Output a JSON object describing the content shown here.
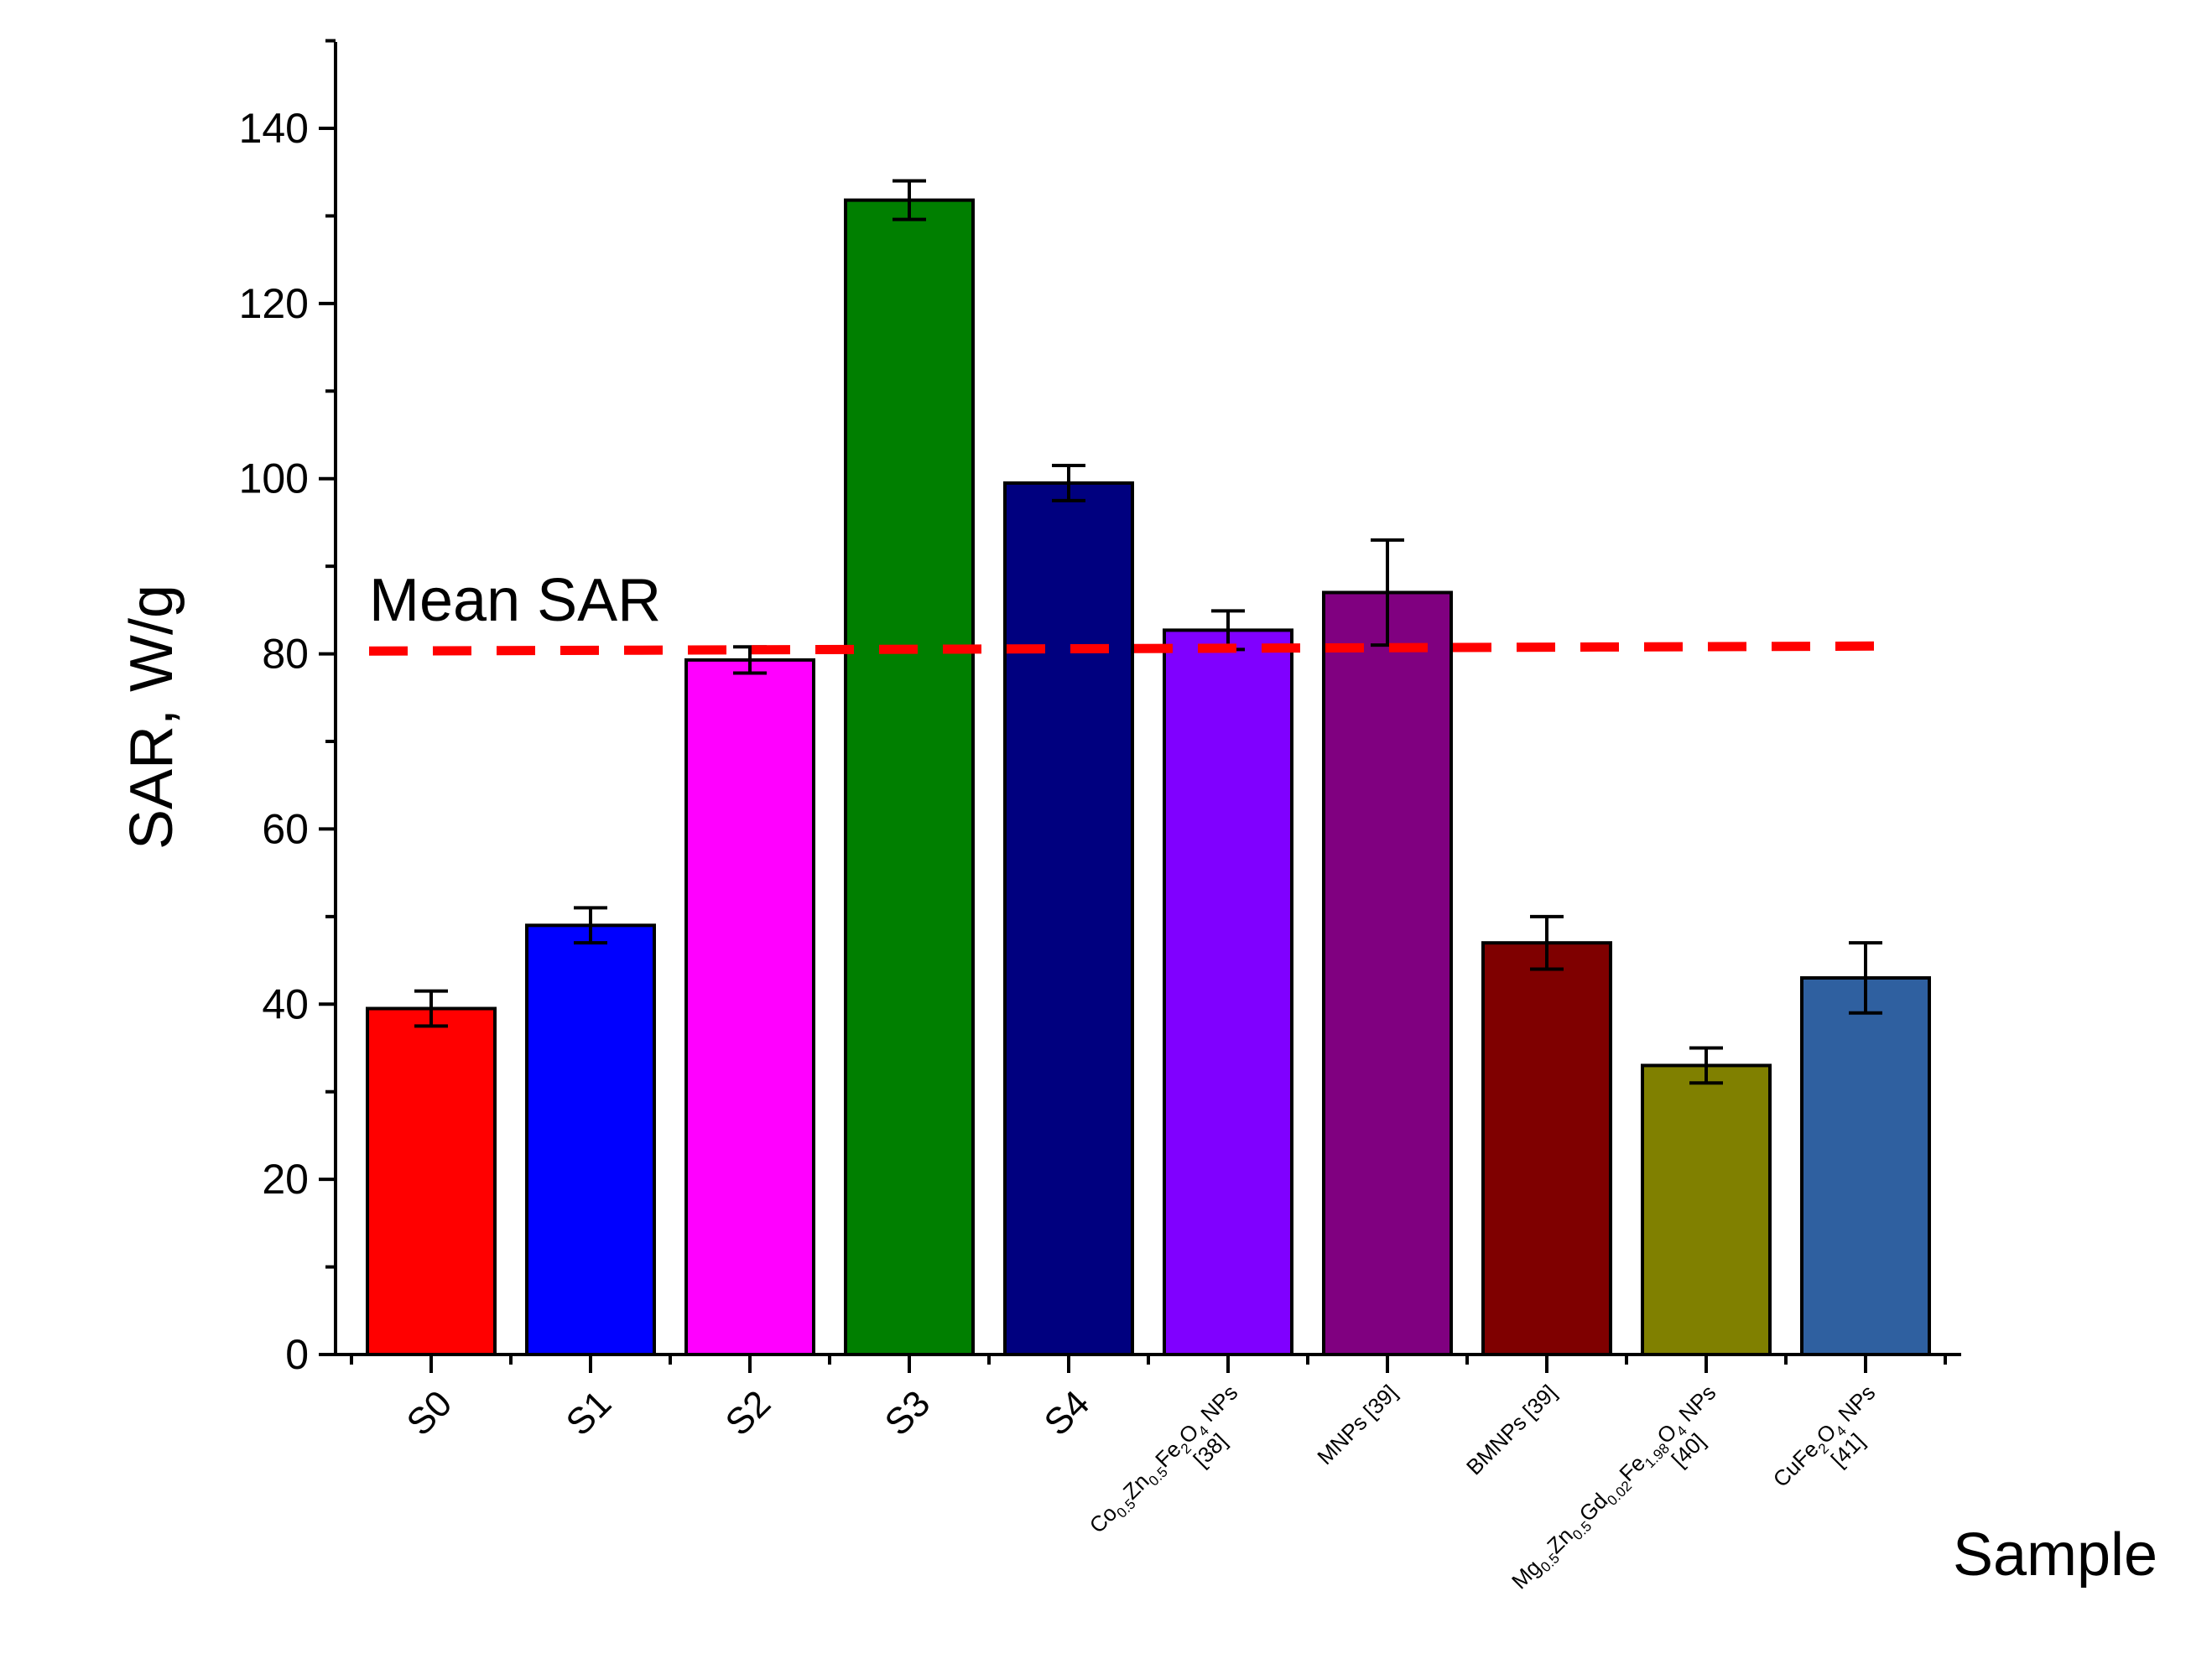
{
  "chart_data": {
    "type": "bar",
    "title": "",
    "xlabel": "Sample",
    "ylabel": "SAR, W/g",
    "ylim": [
      0,
      150
    ],
    "yticks": [
      "0",
      "20",
      "40",
      "60",
      "80",
      "100",
      "120",
      "140"
    ],
    "grid": false,
    "categories": [
      {
        "parts": [
          [
            "S0",
            ""
          ]
        ]
      },
      {
        "parts": [
          [
            "S1",
            ""
          ]
        ]
      },
      {
        "parts": [
          [
            "S2",
            ""
          ]
        ]
      },
      {
        "parts": [
          [
            "S3",
            ""
          ]
        ]
      },
      {
        "parts": [
          [
            "S4",
            ""
          ]
        ]
      },
      {
        "parts": [
          [
            "Co",
            "0.5"
          ],
          [
            "Zn",
            "0.5"
          ],
          [
            "Fe",
            "2"
          ],
          [
            "O",
            "4"
          ],
          [
            " NPs",
            ""
          ]
        ],
        "line2": "[38]"
      },
      {
        "parts": [
          [
            "MNPs [39]",
            ""
          ]
        ]
      },
      {
        "parts": [
          [
            "BMNPs [39]",
            ""
          ]
        ]
      },
      {
        "parts": [
          [
            "Mg",
            "0.5"
          ],
          [
            "Zn",
            "0.5"
          ],
          [
            "Gd",
            "0.02"
          ],
          [
            "Fe",
            "1.98"
          ],
          [
            "O",
            "4"
          ],
          [
            " NPs",
            ""
          ]
        ],
        "line2": "[40]"
      },
      {
        "parts": [
          [
            "CuFe",
            "2"
          ],
          [
            "O",
            "4"
          ],
          [
            " NPs",
            ""
          ]
        ],
        "line2": "[41]"
      }
    ],
    "values": [
      39.5,
      49,
      79.3,
      131.8,
      99.5,
      82.7,
      87,
      47,
      33,
      43
    ],
    "errors": [
      2,
      2,
      1.5,
      2.2,
      2,
      2.2,
      6,
      3,
      2,
      4
    ],
    "colors": [
      "#ff0000",
      "#0000ff",
      "#ff00ff",
      "#007f00",
      "#00007f",
      "#8000ff",
      "#800080",
      "#7f0000",
      "#808000",
      "#2f60a0"
    ],
    "reference_line": {
      "label": "Mean SAR",
      "value": 80.6,
      "color": "#ff0000",
      "style": "dashed"
    }
  }
}
